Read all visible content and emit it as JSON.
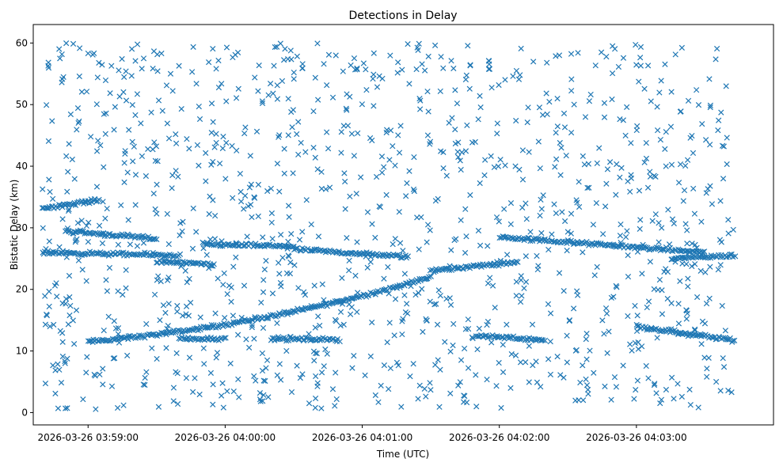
{
  "chart_data": {
    "type": "scatter",
    "title": "Detections in Delay",
    "xlabel": "Time (UTC)",
    "ylabel": "Bistatic Delay (km)",
    "marker": "x",
    "marker_color": "#1f77b4",
    "x_units": "seconds since 2026-03-26 03:59:00",
    "xlim": [
      -24,
      300
    ],
    "ylim": [
      -2,
      63
    ],
    "x_ticks": [
      {
        "value": 0,
        "label": "2026-03-26 03:59:00"
      },
      {
        "value": 60,
        "label": "2026-03-26 04:00:00"
      },
      {
        "value": 120,
        "label": "2026-03-26 04:01:00"
      },
      {
        "value": 180,
        "label": "2026-03-26 04:02:00"
      },
      {
        "value": 240,
        "label": "2026-03-26 04:03:00"
      }
    ],
    "y_ticks": [
      {
        "value": 0,
        "label": "0"
      },
      {
        "value": 10,
        "label": "10"
      },
      {
        "value": 20,
        "label": "20"
      },
      {
        "value": 30,
        "label": "30"
      },
      {
        "value": 40,
        "label": "40"
      },
      {
        "value": 50,
        "label": "50"
      },
      {
        "value": 60,
        "label": "60"
      }
    ],
    "x_range_of_detections": [
      -20,
      283
    ],
    "track_segments": [
      {
        "name": "main-track-rise",
        "x_start": 0,
        "x_end": 150,
        "y_start": 11.5,
        "y_end": 22.0,
        "shape": "convex"
      },
      {
        "name": "main-track-mid",
        "x_start": 150,
        "x_end": 188,
        "y_start": 23.0,
        "y_end": 24.5,
        "shape": "linear"
      },
      {
        "name": "main-track-fall",
        "x_start": 240,
        "x_end": 283,
        "y_start": 14.0,
        "y_end": 11.7,
        "shape": "linear"
      },
      {
        "name": "upper-track",
        "x_start": -20,
        "x_end": 5,
        "y_start": 33.2,
        "y_end": 34.5,
        "shape": "linear"
      },
      {
        "name": "band-29",
        "x_start": -10,
        "x_end": 30,
        "y_start": 29.5,
        "y_end": 28.2,
        "shape": "linear"
      },
      {
        "name": "band-26",
        "x_start": -20,
        "x_end": 40,
        "y_start": 26.0,
        "y_end": 25.5,
        "shape": "linear"
      },
      {
        "name": "band-24-left",
        "x_start": 30,
        "x_end": 55,
        "y_start": 24.5,
        "y_end": 24.0,
        "shape": "linear"
      },
      {
        "name": "band-27",
        "x_start": 50,
        "x_end": 90,
        "y_start": 27.3,
        "y_end": 27.0,
        "shape": "linear"
      },
      {
        "name": "band-26-mid",
        "x_start": 90,
        "x_end": 140,
        "y_start": 26.5,
        "y_end": 25.3,
        "shape": "linear"
      },
      {
        "name": "band-28-right",
        "x_start": 180,
        "x_end": 270,
        "y_start": 28.5,
        "y_end": 26.0,
        "shape": "linear"
      },
      {
        "name": "band-25-right",
        "x_start": 255,
        "x_end": 283,
        "y_start": 25.0,
        "y_end": 25.5,
        "shape": "linear"
      },
      {
        "name": "band-12-left",
        "x_start": 40,
        "x_end": 60,
        "y_start": 12.0,
        "y_end": 12.0,
        "shape": "linear"
      },
      {
        "name": "band-12-mid",
        "x_start": 80,
        "x_end": 110,
        "y_start": 12.0,
        "y_end": 11.8,
        "shape": "linear"
      },
      {
        "name": "band-12-right",
        "x_start": 170,
        "x_end": 200,
        "y_start": 12.5,
        "y_end": 11.8,
        "shape": "linear"
      }
    ],
    "background_clutter": {
      "count": 1200,
      "x_range": [
        -20,
        283
      ],
      "y_range": [
        0.5,
        60
      ]
    }
  }
}
